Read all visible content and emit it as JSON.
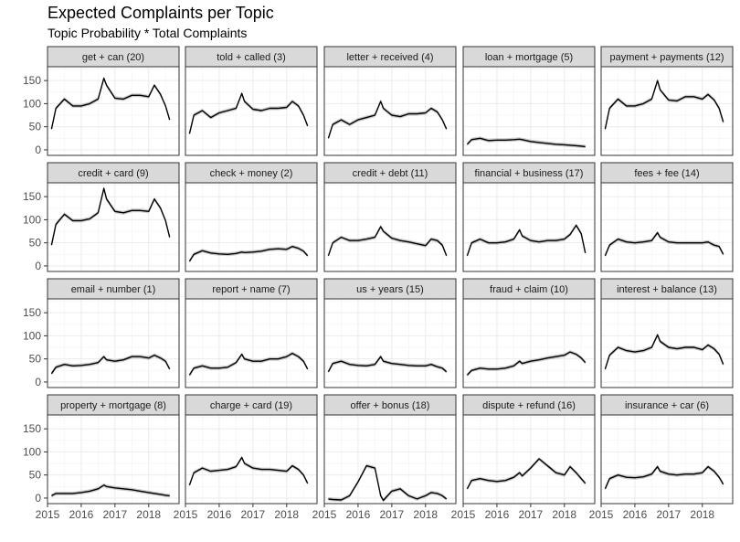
{
  "chart_data": {
    "type": "line",
    "title": "Expected Complaints per Topic",
    "subtitle": "Topic Probability * Total Complaints",
    "xlabel": "",
    "ylabel": "",
    "x_ticks": [
      "2015",
      "2016",
      "2017",
      "2018"
    ],
    "y_ticks": [
      "0",
      "50",
      "100",
      "150"
    ],
    "xlim": [
      2015.0,
      2018.9
    ],
    "ylim": [
      -12,
      180
    ],
    "grid": true,
    "facets": {
      "rows": 4,
      "cols": 5
    },
    "x": [
      2015.12,
      2015.25,
      2015.5,
      2015.75,
      2016.0,
      2016.25,
      2016.5,
      2016.67,
      2016.75,
      2017.0,
      2017.25,
      2017.5,
      2017.75,
      2018.0,
      2018.17,
      2018.35,
      2018.5,
      2018.62
    ],
    "panels": [
      {
        "label": "get + can (20)",
        "values": [
          45,
          90,
          110,
          95,
          95,
          100,
          110,
          155,
          140,
          112,
          110,
          118,
          118,
          115,
          140,
          120,
          95,
          65
        ]
      },
      {
        "label": "told + called (3)",
        "values": [
          35,
          75,
          85,
          70,
          80,
          85,
          90,
          122,
          105,
          88,
          85,
          90,
          90,
          92,
          105,
          95,
          75,
          52
        ]
      },
      {
        "label": "letter + received (4)",
        "values": [
          25,
          55,
          65,
          55,
          65,
          70,
          75,
          105,
          90,
          75,
          72,
          78,
          78,
          80,
          90,
          82,
          65,
          45
        ]
      },
      {
        "label": "loan + mortgage (5)",
        "values": [
          12,
          22,
          25,
          20,
          21,
          21,
          22,
          23,
          22,
          18,
          16,
          14,
          12,
          11,
          10,
          9,
          8,
          7
        ]
      },
      {
        "label": "payment + payments (12)",
        "values": [
          45,
          90,
          110,
          95,
          95,
          100,
          110,
          150,
          130,
          108,
          106,
          115,
          115,
          110,
          120,
          108,
          90,
          60
        ]
      },
      {
        "label": "credit + card (9)",
        "values": [
          45,
          90,
          112,
          98,
          98,
          102,
          115,
          168,
          145,
          118,
          115,
          120,
          120,
          118,
          145,
          125,
          98,
          62
        ]
      },
      {
        "label": "check + money (2)",
        "values": [
          10,
          25,
          33,
          28,
          26,
          25,
          27,
          30,
          29,
          30,
          32,
          36,
          37,
          36,
          42,
          38,
          32,
          22
        ]
      },
      {
        "label": "credit + debt (11)",
        "values": [
          22,
          50,
          62,
          55,
          55,
          58,
          62,
          85,
          75,
          60,
          55,
          52,
          48,
          44,
          58,
          55,
          45,
          22
        ]
      },
      {
        "label": "financial + business (17)",
        "values": [
          22,
          50,
          58,
          50,
          50,
          52,
          58,
          78,
          65,
          55,
          52,
          55,
          55,
          58,
          68,
          88,
          70,
          28
        ]
      },
      {
        "label": "fees + fee (14)",
        "values": [
          22,
          45,
          58,
          52,
          50,
          52,
          55,
          72,
          62,
          52,
          50,
          50,
          50,
          50,
          52,
          45,
          42,
          25
        ]
      },
      {
        "label": "email + number (1)",
        "values": [
          18,
          32,
          38,
          35,
          36,
          38,
          42,
          55,
          48,
          45,
          48,
          55,
          55,
          52,
          58,
          52,
          45,
          28
        ]
      },
      {
        "label": "report + name (7)",
        "values": [
          15,
          30,
          35,
          30,
          30,
          32,
          42,
          60,
          50,
          45,
          45,
          50,
          50,
          55,
          62,
          55,
          45,
          28
        ]
      },
      {
        "label": "us + years (15)",
        "values": [
          22,
          40,
          45,
          38,
          36,
          35,
          38,
          55,
          45,
          40,
          38,
          36,
          35,
          35,
          38,
          33,
          30,
          22
        ]
      },
      {
        "label": "fraud + claim (10)",
        "values": [
          15,
          25,
          30,
          28,
          28,
          30,
          35,
          45,
          40,
          45,
          48,
          52,
          55,
          58,
          65,
          60,
          52,
          42
        ]
      },
      {
        "label": "interest + balance (13)",
        "values": [
          28,
          58,
          75,
          68,
          65,
          68,
          75,
          102,
          88,
          75,
          72,
          75,
          75,
          70,
          80,
          72,
          60,
          38
        ]
      },
      {
        "label": "property + mortgage (8)",
        "values": [
          5,
          10,
          10,
          10,
          12,
          15,
          20,
          28,
          25,
          22,
          20,
          18,
          15,
          12,
          10,
          8,
          6,
          5
        ]
      },
      {
        "label": "charge + card (19)",
        "values": [
          28,
          55,
          65,
          58,
          60,
          62,
          68,
          88,
          75,
          65,
          62,
          62,
          60,
          58,
          70,
          62,
          50,
          32
        ]
      },
      {
        "label": "offer + bonus (18)",
        "values": [
          -2,
          -3,
          -4,
          5,
          35,
          70,
          65,
          5,
          -5,
          15,
          20,
          5,
          -2,
          5,
          12,
          10,
          5,
          -2
        ]
      },
      {
        "label": "dispute + refund (16)",
        "values": [
          20,
          38,
          42,
          38,
          36,
          38,
          45,
          55,
          48,
          65,
          85,
          70,
          55,
          50,
          68,
          55,
          42,
          32
        ]
      },
      {
        "label": "insurance + car (6)",
        "values": [
          20,
          42,
          50,
          45,
          44,
          46,
          52,
          68,
          58,
          52,
          50,
          52,
          52,
          55,
          68,
          58,
          45,
          30
        ]
      }
    ]
  }
}
